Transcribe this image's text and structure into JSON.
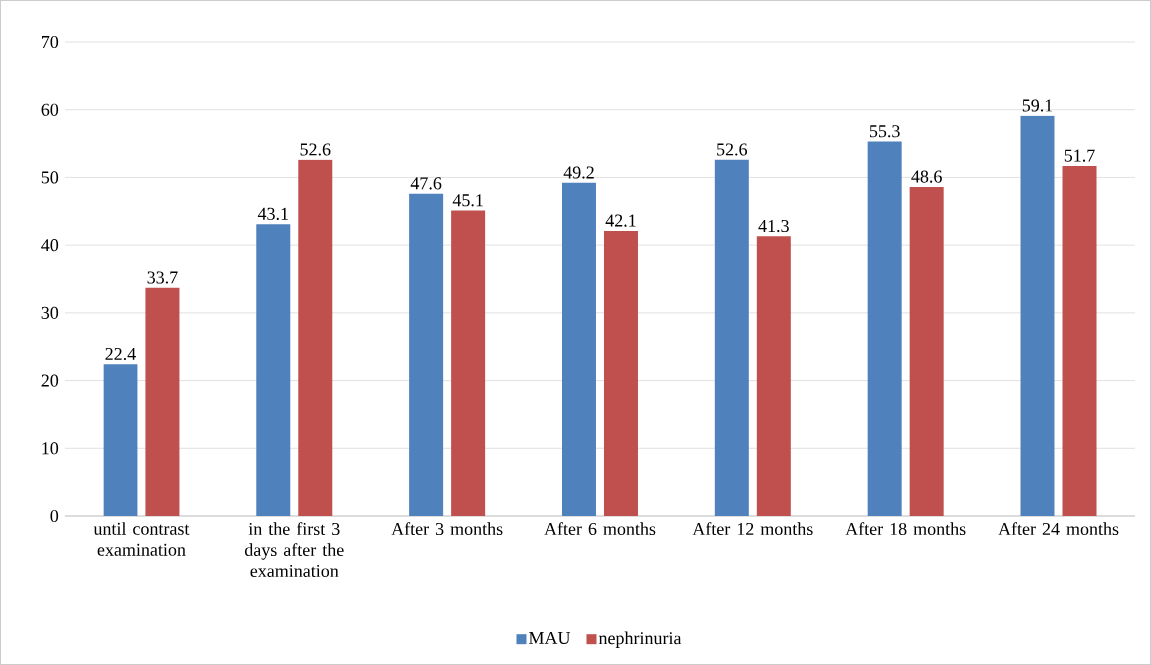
{
  "chart_data": {
    "type": "bar",
    "categories": [
      "until contrast examination",
      "in the first 3 days after the examination",
      "After 3 months",
      "After 6 months",
      "After 12 months",
      "After 18 months",
      "After 24 months"
    ],
    "series": [
      {
        "name": "MAU",
        "color": "#4f81bd",
        "values": [
          22.4,
          43.1,
          47.6,
          49.2,
          52.6,
          55.3,
          59.1
        ]
      },
      {
        "name": "nephrinuria",
        "color": "#c0504d",
        "values": [
          33.7,
          52.6,
          45.1,
          42.1,
          41.3,
          48.6,
          51.7
        ]
      }
    ],
    "ylim": [
      0,
      70
    ],
    "yticks": [
      0,
      10,
      20,
      30,
      40,
      50,
      60,
      70
    ],
    "grid": "y",
    "legend": "bottom",
    "data_labels": true
  }
}
